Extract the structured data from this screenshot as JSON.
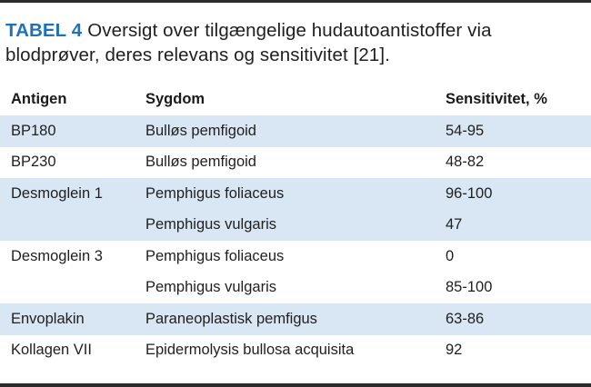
{
  "caption": {
    "label": "TABEL 4",
    "text": "Oversigt over tilgængelige hudautoantistoffer via blodprøver, deres relevans og sensitivitet [21]."
  },
  "colors": {
    "accent": "#1f72b5",
    "row_shade": "#d9e6f3",
    "rule": "#2b2b2b"
  },
  "table": {
    "headers": [
      "Antigen",
      "Sygdom",
      "Sensitivitet, %"
    ],
    "rows": [
      {
        "antigen": "BP180",
        "disease": "Bulløs pemfigoid",
        "sensitivity": "54-95",
        "shade": true
      },
      {
        "antigen": "BP230",
        "disease": "Bulløs pemfigoid",
        "sensitivity": "48-82",
        "shade": false
      },
      {
        "antigen": "Desmoglein 1",
        "disease": "Pemphigus foliaceus",
        "sensitivity": "96-100",
        "shade": true
      },
      {
        "antigen": "",
        "disease": "Pemphigus vulgaris",
        "sensitivity": "47",
        "shade": true
      },
      {
        "antigen": "Desmoglein 3",
        "disease": "Pemphigus foliaceus",
        "sensitivity": "0",
        "shade": false
      },
      {
        "antigen": "",
        "disease": "Pemphigus vulgaris",
        "sensitivity": "85-100",
        "shade": false
      },
      {
        "antigen": "Envoplakin",
        "disease": "Paraneoplastisk pemfigus",
        "sensitivity": "63-86",
        "shade": true
      },
      {
        "antigen": "Kollagen VII",
        "disease": "Epidermolysis bullosa acquisita",
        "sensitivity": "92",
        "shade": false
      }
    ]
  }
}
